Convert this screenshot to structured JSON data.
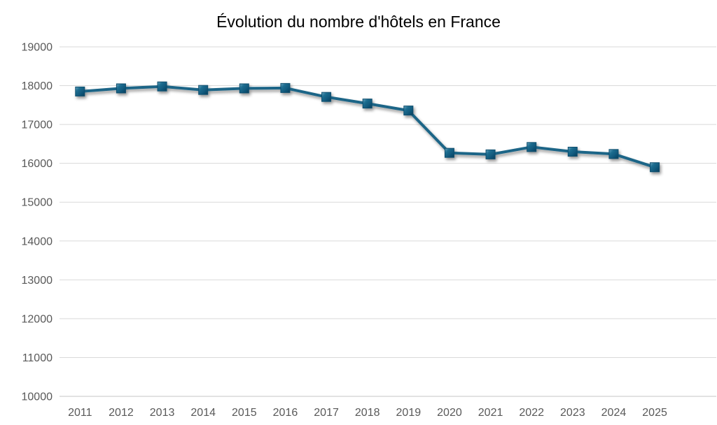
{
  "chart_data": {
    "type": "line",
    "title": "Évolution du nombre d'hôtels en France",
    "categories": [
      "2011",
      "2012",
      "2013",
      "2014",
      "2015",
      "2016",
      "2017",
      "2018",
      "2019",
      "2020",
      "2021",
      "2022",
      "2023",
      "2024",
      "2025"
    ],
    "values": [
      17850,
      17930,
      17980,
      17890,
      17930,
      17940,
      17710,
      17540,
      17360,
      16270,
      16230,
      16420,
      16300,
      16240,
      15900
    ],
    "xlabel": "",
    "ylabel": "",
    "ylim": [
      10000,
      19000
    ],
    "ytick_step": 1000,
    "legend": "none",
    "grid": "horizontal",
    "marker_shape": "square",
    "colors": {
      "line": "#1b6587",
      "marker_main": "#156082",
      "marker_light": "#5d9cb8",
      "marker_dark": "#0a3f5a",
      "marker_stroke": "#0e4d6d",
      "text": "#595959",
      "gridline": "#d9d9d9",
      "axis_line": "#c6c6c6",
      "background": "#ffffff"
    }
  }
}
